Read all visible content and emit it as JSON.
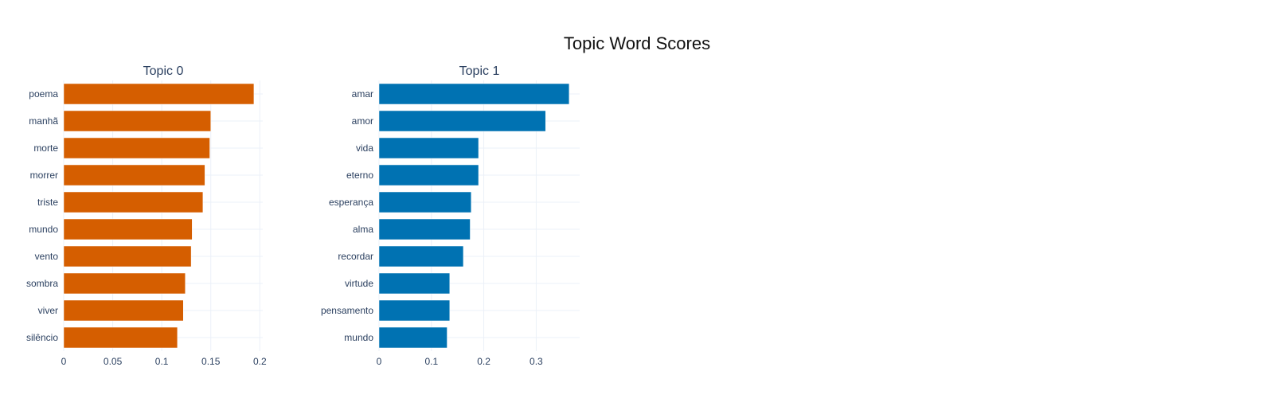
{
  "title": "Topic Word Scores",
  "chart_data": [
    {
      "type": "bar",
      "orientation": "horizontal",
      "title": "Topic 0",
      "color": "#D55E00",
      "categories": [
        "poema",
        "manhã",
        "morte",
        "morrer",
        "triste",
        "mundo",
        "vento",
        "sombra",
        "viver",
        "silêncio"
      ],
      "values": [
        0.194,
        0.15,
        0.149,
        0.144,
        0.142,
        0.131,
        0.13,
        0.124,
        0.122,
        0.116
      ],
      "xlim": [
        0,
        0.203
      ],
      "xticks": [
        0,
        0.05,
        0.1,
        0.15,
        0.2
      ],
      "xtick_labels": [
        "0",
        "0.05",
        "0.1",
        "0.15",
        "0.2"
      ],
      "grid": true
    },
    {
      "type": "bar",
      "orientation": "horizontal",
      "title": "Topic 1",
      "color": "#0072B2",
      "categories": [
        "amar",
        "amor",
        "vida",
        "eterno",
        "esperança",
        "alma",
        "recordar",
        "virtude",
        "pensamento",
        "mundo"
      ],
      "values": [
        0.363,
        0.318,
        0.19,
        0.19,
        0.176,
        0.174,
        0.161,
        0.135,
        0.135,
        0.13
      ],
      "xlim": [
        0,
        0.383
      ],
      "xticks": [
        0,
        0.1,
        0.2,
        0.3
      ],
      "xtick_labels": [
        "0",
        "0.1",
        "0.2",
        "0.3"
      ],
      "grid": true
    }
  ]
}
